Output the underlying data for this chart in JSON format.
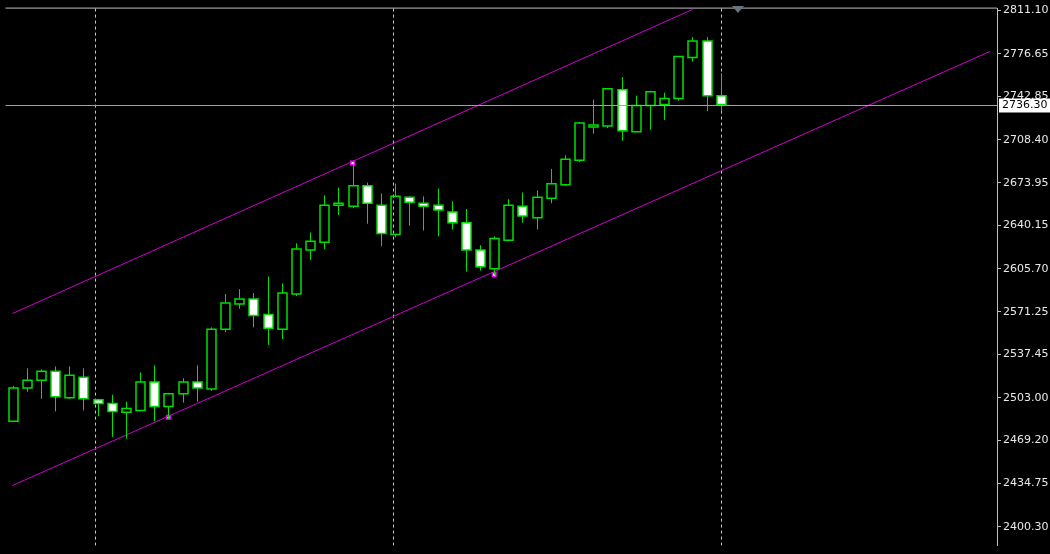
{
  "chart_data": {
    "type": "candlestick",
    "color": "#00e000",
    "categories": [
      null,
      null,
      null,
      null,
      null,
      null,
      null,
      null,
      null,
      null,
      null,
      null,
      null,
      null,
      null,
      null,
      null,
      null,
      null,
      null,
      null,
      null,
      null,
      null,
      null,
      null,
      null,
      null,
      null,
      null,
      null,
      null,
      null,
      null,
      null,
      null,
      null,
      null,
      null,
      null,
      null,
      null,
      null,
      null,
      null,
      null,
      null,
      null,
      null,
      null,
      null,
      null,
      null,
      null,
      null,
      null,
      null,
      null,
      null,
      null,
      null,
      null,
      null,
      null,
      null,
      null,
      null,
      null,
      null,
      null
    ],
    "ohlc": [
      [
        2484.3,
        2512.4,
        2483.6,
        2510.8
      ],
      [
        2510.8,
        2526.4,
        2507.7,
        2517.0
      ],
      [
        2517.0,
        2525.6,
        2502.2,
        2524.0
      ],
      [
        2524.0,
        2527.9,
        2492.1,
        2503.8
      ],
      [
        2503.0,
        2527.9,
        2502.2,
        2520.9
      ],
      [
        2519.4,
        2526.4,
        2492.9,
        2502.2
      ],
      [
        2501.5,
        2502.2,
        2488.2,
        2498.4
      ],
      [
        2498.4,
        2505.4,
        2471.9,
        2492.1
      ],
      [
        2491.4,
        2499.9,
        2470.3,
        2494.5
      ],
      [
        2492.9,
        2523.2,
        2492.1,
        2515.5
      ],
      [
        2515.5,
        2528.7,
        2484.3,
        2496.0
      ],
      [
        2496.0,
        2506.9,
        2485.9,
        2506.1
      ],
      [
        2506.1,
        2518.6,
        2499.1,
        2515.5
      ],
      [
        2515.5,
        2528.7,
        2499.9,
        2510.8
      ],
      [
        2510.0,
        2559.0,
        2508.5,
        2557.5
      ],
      [
        2557.5,
        2585.5,
        2555.1,
        2578.5
      ],
      [
        2577.7,
        2589.4,
        2573.8,
        2581.6
      ],
      [
        2581.6,
        2586.3,
        2559.0,
        2568.4
      ],
      [
        2569.2,
        2599.5,
        2545.0,
        2558.3
      ],
      [
        2557.5,
        2594.0,
        2549.7,
        2586.3
      ],
      [
        2585.5,
        2625.9,
        2583.9,
        2621.3
      ],
      [
        2620.5,
        2634.5,
        2612.7,
        2627.5
      ],
      [
        2626.7,
        2664.1,
        2621.3,
        2656.3
      ],
      [
        2656.3,
        2670.3,
        2648.5,
        2657.8
      ],
      [
        2655.5,
        2689.0,
        2654.0,
        2671.8
      ],
      [
        2671.8,
        2674.2,
        2641.5,
        2657.8
      ],
      [
        2656.3,
        2665.6,
        2623.6,
        2633.7
      ],
      [
        2632.9,
        2673.4,
        2630.6,
        2663.3
      ],
      [
        2662.5,
        2663.3,
        2639.9,
        2658.6
      ],
      [
        2657.8,
        2663.3,
        2636.1,
        2655.5
      ],
      [
        2656.3,
        2669.5,
        2631.4,
        2652.4
      ],
      [
        2650.8,
        2659.4,
        2636.8,
        2642.3
      ],
      [
        2642.3,
        2653.2,
        2603.4,
        2620.5
      ],
      [
        2620.5,
        2624.4,
        2604.2,
        2607.3
      ],
      [
        2605.7,
        2631.4,
        2601.0,
        2629.8
      ],
      [
        2628.3,
        2661.0,
        2627.5,
        2656.3
      ],
      [
        2655.5,
        2666.4,
        2642.3,
        2647.7
      ],
      [
        2646.2,
        2668.0,
        2636.8,
        2662.5
      ],
      [
        2661.7,
        2685.1,
        2657.8,
        2673.4
      ],
      [
        2672.6,
        2696.0,
        2671.8,
        2692.9
      ],
      [
        2692.1,
        2722.4,
        2690.5,
        2721.6
      ],
      [
        2718.5,
        2740.3,
        2713.1,
        2720.1
      ],
      [
        2719.3,
        2748.9,
        2717.7,
        2748.9
      ],
      [
        2748.1,
        2758.2,
        2707.6,
        2715.4
      ],
      [
        2714.6,
        2743.4,
        2714.6,
        2735.6
      ],
      [
        2735.6,
        2747.3,
        2716.2,
        2746.5
      ],
      [
        2736.4,
        2745.8,
        2724.0,
        2741.1
      ],
      [
        2741.1,
        2774.5,
        2739.5,
        2774.5
      ],
      [
        2773.8,
        2790.1,
        2770.6,
        2787.0
      ],
      [
        2787.0,
        2790.1,
        2731.0,
        2743.4
      ],
      [
        2743.4,
        2761.3,
        2731.0,
        2736.3
      ],
      null,
      null,
      null,
      null,
      null,
      null,
      null,
      null,
      null,
      null,
      null,
      null,
      null,
      null,
      null,
      null,
      null,
      null,
      null
    ],
    "series": [
      {
        "type": "line",
        "color": "#d000d0",
        "values": [
          2570.1,
          null,
          null,
          null,
          null,
          null,
          null,
          null,
          null,
          null,
          null,
          null,
          null,
          null,
          null,
          null,
          null,
          null,
          null,
          null,
          null,
          null,
          null,
          null,
          null,
          null,
          null,
          null,
          null,
          null,
          null,
          null,
          null,
          null,
          null,
          null,
          null,
          null,
          null,
          null,
          null,
          null,
          null,
          null,
          null,
          null,
          null,
          null,
          2812.0,
          null,
          null,
          null,
          null,
          null,
          null,
          null,
          null,
          null,
          null,
          null,
          null,
          null,
          null,
          null,
          null,
          null,
          null,
          null,
          null,
          null
        ]
      },
      {
        "type": "line",
        "color": "#d000d0",
        "values": [
          2433.2,
          null,
          null,
          null,
          null,
          null,
          null,
          null,
          null,
          null,
          null,
          null,
          null,
          null,
          null,
          null,
          null,
          null,
          null,
          null,
          null,
          null,
          null,
          null,
          null,
          null,
          null,
          null,
          null,
          null,
          null,
          null,
          null,
          null,
          null,
          null,
          null,
          null,
          null,
          null,
          null,
          null,
          null,
          null,
          null,
          null,
          null,
          null,
          null,
          null,
          null,
          null,
          null,
          null,
          null,
          null,
          null,
          null,
          null,
          null,
          null,
          null,
          null,
          null,
          null,
          null,
          null,
          null,
          null,
          2778.6
        ]
      },
      {
        "type": "scatter",
        "color": "#ff00ff",
        "marker": "square",
        "values": [
          null,
          null,
          null,
          null,
          null,
          null,
          null,
          null,
          null,
          null,
          null,
          2487.5,
          null,
          null,
          null,
          null,
          null,
          null,
          null,
          null,
          null,
          null,
          null,
          null,
          2689.8,
          null,
          null,
          null,
          null,
          null,
          null,
          null,
          null,
          null,
          2601.0,
          null,
          null,
          null,
          null,
          null,
          null,
          null,
          null,
          null,
          null,
          null,
          null,
          null,
          null,
          null,
          null,
          null,
          null,
          null,
          null,
          null,
          null,
          null,
          null,
          null,
          null,
          null,
          null,
          null,
          null,
          null,
          null,
          null,
          null,
          null
        ]
      }
    ],
    "ylim": [
      2385.5,
      2812.7
    ],
    "yticks": [
      {
        "value": 2811.1,
        "label": "2811.10"
      },
      {
        "value": 2776.65,
        "label": "2776.65"
      },
      {
        "value": 2742.85,
        "label": "2742.85"
      },
      {
        "value": 2708.4,
        "label": "2708.40"
      },
      {
        "value": 2673.95,
        "label": "2673.95"
      },
      {
        "value": 2640.15,
        "label": "2640.15"
      },
      {
        "value": 2605.7,
        "label": "2605.70"
      },
      {
        "value": 2571.25,
        "label": "2571.25"
      },
      {
        "value": 2537.45,
        "label": "2537.45"
      },
      {
        "value": 2503.0,
        "label": "2503.00"
      },
      {
        "value": 2469.2,
        "label": "2469.20"
      },
      {
        "value": 2434.75,
        "label": "2434.75"
      },
      {
        "value": 2400.3,
        "label": "2400.30"
      }
    ],
    "ref_lines": [
      {
        "axis": "y",
        "value": 2736.3,
        "label": "2736.30",
        "color": "#a0a0a8"
      }
    ],
    "colors": [
      "#00e000",
      "#00e000",
      "#00e000",
      "#ffffff",
      "#00e000",
      "#ffffff",
      "#ffffff",
      "#ffffff",
      "#00e000",
      "#00e000",
      "#ffffff",
      "#00e000",
      "#00e000",
      "#ffffff",
      "#00e000",
      "#00e000",
      "#00e000",
      "#ffffff",
      "#ffffff",
      "#00e000",
      "#00e000",
      "#00e000",
      "#00e000",
      "#00e000",
      "#00e000",
      "#ffffff",
      "#ffffff",
      "#00e000",
      "#ffffff",
      "#ffffff",
      "#ffffff",
      "#ffffff",
      "#ffffff",
      "#ffffff",
      "#00e000",
      "#00e000",
      "#ffffff",
      "#00e000",
      "#00e000",
      "#00e000",
      "#00e000",
      "#00e000",
      "#00e000",
      "#ffffff",
      "#00e000",
      "#00e000",
      "#00e000",
      "#00e000",
      "#00e000",
      "#ffffff",
      "#ffffff",
      null,
      null,
      null,
      null,
      null,
      null,
      null,
      null,
      null,
      null,
      null,
      null,
      null,
      null,
      null,
      null,
      null,
      null,
      null
    ],
    "tick_labels": "y",
    "grid": "x",
    "legend": false
  }
}
